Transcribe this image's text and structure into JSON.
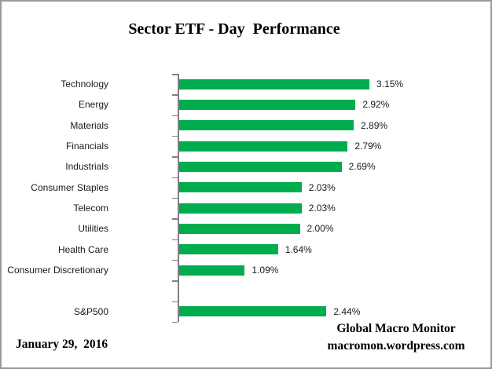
{
  "chart_data": {
    "type": "bar",
    "orientation": "horizontal",
    "title": "Sector ETF - Day  Performance",
    "categories": [
      "Technology",
      "Energy",
      "Materials",
      "Financials",
      "Industrials",
      "Consumer Staples",
      "Telecom",
      "Utilities",
      "Health Care",
      "Consumer Discretionary",
      "S&P500"
    ],
    "values": [
      3.15,
      2.92,
      2.89,
      2.79,
      2.69,
      2.03,
      2.03,
      2.0,
      1.64,
      1.09,
      2.44
    ],
    "value_labels": [
      "3.15%",
      "2.92%",
      "2.89%",
      "2.79%",
      "2.69%",
      "2.03%",
      "2.03%",
      "2.00%",
      "1.64%",
      "1.09%",
      "2.44%"
    ],
    "gap_before": "S&P500",
    "xlim": [
      0,
      3.5
    ],
    "grid": false,
    "legend": "none",
    "bar_color": "#00AC4E",
    "axis_color": "#808080"
  },
  "footer": {
    "date": "January 29,  2016",
    "credit_line1": "Global Macro Monitor",
    "credit_line2": "macromon.wordpress.com"
  }
}
